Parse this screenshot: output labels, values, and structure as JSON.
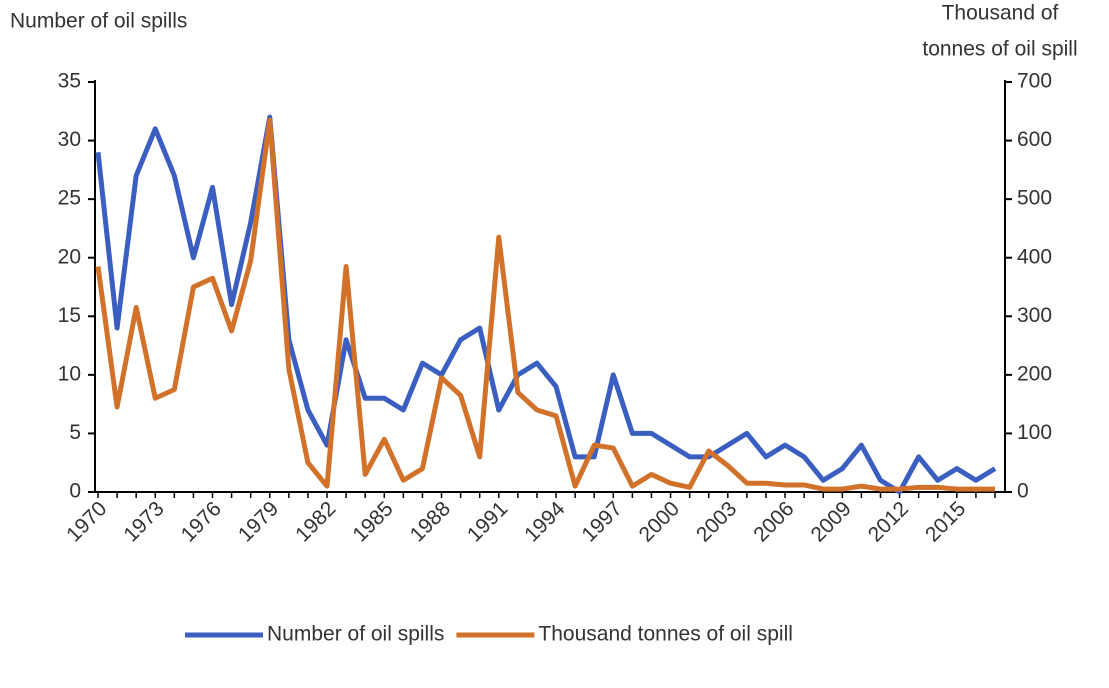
{
  "chart_data": {
    "type": "line",
    "ylabel": "Number of oil spills",
    "y2label": [
      "Thousand of",
      "tonnes of oil spill"
    ],
    "categories": [
      "1970",
      null,
      null,
      "1973",
      null,
      null,
      "1976",
      null,
      null,
      "1979",
      null,
      null,
      "1982",
      null,
      null,
      "1985",
      null,
      null,
      "1988",
      null,
      null,
      "1991",
      null,
      null,
      "1994",
      null,
      null,
      "1997",
      null,
      null,
      "2000",
      null,
      null,
      "2003",
      null,
      null,
      "2006",
      null,
      null,
      "2009",
      null,
      null,
      "2012",
      null,
      null,
      "2015",
      null,
      null
    ],
    "series": [
      {
        "name": "Number of oil spills",
        "color": "#3b5fc0",
        "axis": "y",
        "values": [
          29,
          14,
          27,
          31,
          27,
          20,
          26,
          16,
          23,
          32,
          13,
          7,
          4,
          13,
          8,
          8,
          7,
          11,
          10,
          13,
          14,
          7,
          10,
          11,
          9,
          3,
          3,
          10,
          5,
          5,
          4,
          3,
          3,
          4,
          5,
          3,
          4,
          3,
          1,
          2,
          4,
          1,
          0,
          3,
          1,
          2,
          1,
          2
        ]
      },
      {
        "name": "Thousand tonnes of oil spill",
        "color": "#d2722a",
        "axis": "y2",
        "values": [
          385,
          145,
          315,
          160,
          175,
          350,
          365,
          275,
          395,
          635,
          210,
          50,
          10,
          385,
          30,
          90,
          20,
          40,
          195,
          165,
          60,
          435,
          170,
          140,
          130,
          10,
          80,
          75,
          10,
          30,
          15,
          8,
          70,
          45,
          15,
          15,
          12,
          12,
          5,
          5,
          10,
          5,
          5,
          8,
          8,
          5,
          5,
          5
        ]
      }
    ],
    "ylim": [
      0,
      35
    ],
    "yticks": [
      0,
      5,
      10,
      15,
      20,
      25,
      30,
      35
    ],
    "y2lim": [
      0,
      700
    ],
    "y2ticks": [
      0,
      100,
      200,
      300,
      400,
      500,
      600,
      700
    ],
    "legend": "bottom"
  }
}
